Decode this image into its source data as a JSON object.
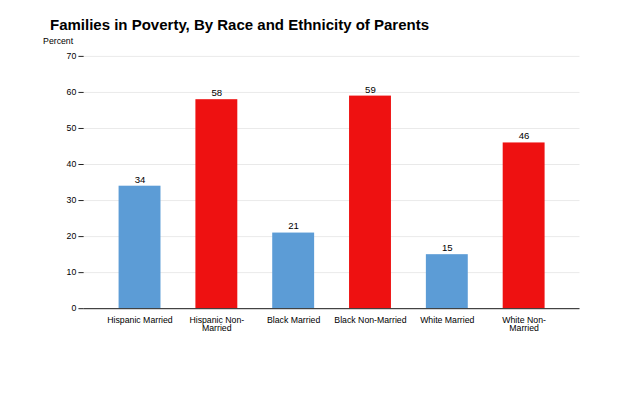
{
  "chart_data": {
    "type": "bar",
    "title": "Families in Poverty, By Race and Ethnicity of Parents",
    "categories": [
      "Hispanic Married",
      "Hispanic Non-\nMarried",
      "Black Married",
      "Black Non-Married",
      "White Married",
      "White Non-\nMarried"
    ],
    "values": [
      34,
      58,
      21,
      59,
      15,
      46
    ],
    "colors": [
      "#5c9cd6",
      "#ee1111",
      "#5c9cd6",
      "#ee1111",
      "#5c9cd6",
      "#ee1111"
    ],
    "ylabel": "Percent",
    "ylim": [
      0,
      70
    ],
    "yticks": [
      0,
      10,
      20,
      30,
      40,
      50,
      60,
      70
    ],
    "grid": true,
    "data_labels": true
  }
}
